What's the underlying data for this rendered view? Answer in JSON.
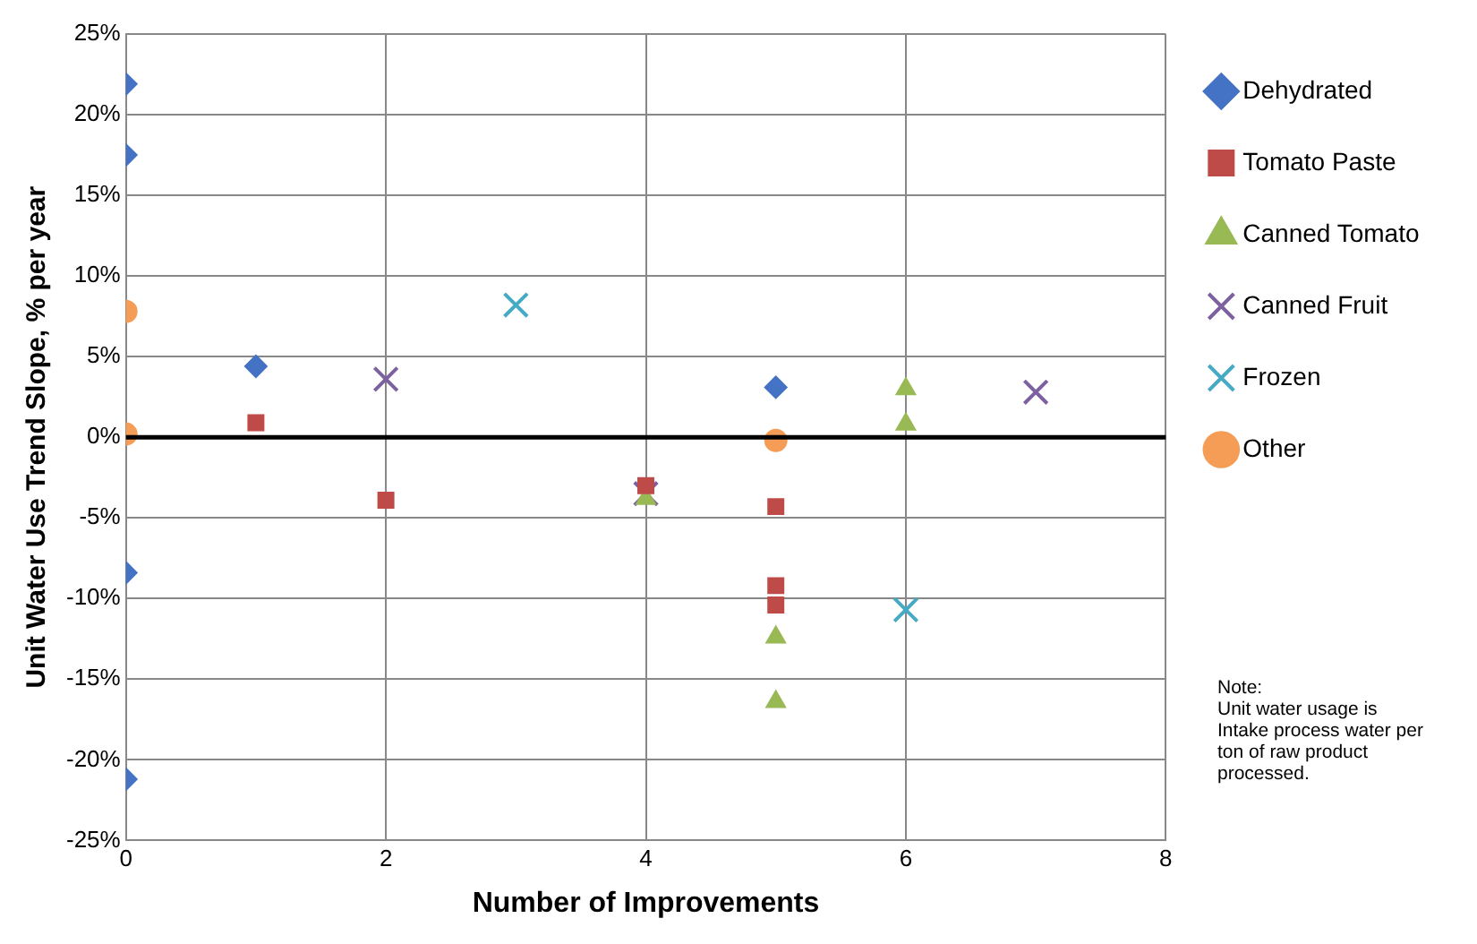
{
  "chart_data": {
    "type": "scatter",
    "xlabel": "Number of Improvements",
    "ylabel": "Unit Water Use Trend Slope, % per year",
    "xlim": [
      0,
      8
    ],
    "xticks": [
      0,
      2,
      4,
      6,
      8
    ],
    "ylim": [
      -25,
      25
    ],
    "yticks": [
      {
        "value": -25,
        "label": "-25%"
      },
      {
        "value": -20,
        "label": "-20%"
      },
      {
        "value": -15,
        "label": "-15%"
      },
      {
        "value": -10,
        "label": "-10%"
      },
      {
        "value": -5,
        "label": "-5%"
      },
      {
        "value": 0,
        "label": "0%"
      },
      {
        "value": 5,
        "label": "5%"
      },
      {
        "value": 10,
        "label": "10%"
      },
      {
        "value": 15,
        "label": "15%"
      },
      {
        "value": 20,
        "label": "20%"
      },
      {
        "value": 25,
        "label": "25%"
      }
    ],
    "grid": true,
    "legend": "right",
    "ref_lines": [
      {
        "axis": "y",
        "value": 0,
        "color": "#000000"
      }
    ],
    "annotations": [
      "Note:\nUnit water usage is Intake process water per ton of raw product processed."
    ],
    "series": [
      {
        "name": "Dehydrated",
        "color": "#4472c4",
        "marker": "diamond",
        "x": [
          0,
          0,
          1,
          5,
          0,
          0
        ],
        "values": [
          21.9,
          17.5,
          4.4,
          3.1,
          -8.4,
          -21.2
        ]
      },
      {
        "name": "Tomato Paste",
        "color": "#be4b48",
        "marker": "square",
        "x": [
          1,
          2,
          4,
          5,
          5,
          5
        ],
        "values": [
          0.9,
          -3.9,
          -3.0,
          -4.3,
          -9.2,
          -10.4
        ]
      },
      {
        "name": "Canned Tomato",
        "color": "#98b954",
        "marker": "triangle",
        "x": [
          4,
          5,
          5,
          6,
          6
        ],
        "values": [
          -3.8,
          -12.4,
          -16.4,
          3.0,
          0.8
        ]
      },
      {
        "name": "Canned Fruit",
        "color": "#7d60a0",
        "marker": "cross",
        "x": [
          2,
          4,
          7
        ],
        "values": [
          3.6,
          -3.5,
          2.8
        ]
      },
      {
        "name": "Frozen",
        "color": "#46aac5",
        "marker": "cross",
        "x": [
          3,
          6
        ],
        "values": [
          8.2,
          -10.7
        ]
      },
      {
        "name": "Other",
        "color": "#f59d56",
        "marker": "circle",
        "x": [
          0,
          0,
          5
        ],
        "values": [
          7.8,
          0.2,
          -0.2
        ]
      }
    ]
  }
}
